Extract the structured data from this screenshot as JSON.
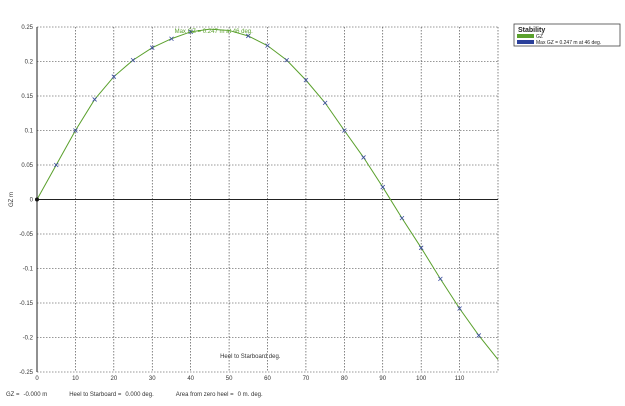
{
  "chart_data": {
    "type": "line",
    "title": "",
    "xlabel": "Heel to Starboard  deg.",
    "ylabel": "GZ  m",
    "xlim": [
      0,
      120
    ],
    "ylim": [
      -0.25,
      0.25
    ],
    "x_ticks": [
      0,
      10,
      20,
      30,
      40,
      50,
      60,
      70,
      80,
      90,
      100,
      110
    ],
    "y_ticks": [
      -0.25,
      -0.2,
      -0.15,
      -0.1,
      -0.05,
      0,
      0.05,
      0.1,
      0.15,
      0.2,
      0.25
    ],
    "x_tick_labels": [
      "0",
      "10",
      "20",
      "30",
      "40",
      "50",
      "60",
      "70",
      "80",
      "90",
      "100",
      "110"
    ],
    "y_tick_labels": [
      "-0.25",
      "-0.2",
      "-0.15",
      "-0.1",
      "-0.05",
      "0",
      "0.05",
      "0.1",
      "0.15",
      "0.2",
      "0.25"
    ],
    "grid": true,
    "series": [
      {
        "name": "GZ",
        "color": "#5aa02c",
        "marker_color": "#3a4aa0",
        "x": [
          0,
          5,
          10,
          15,
          20,
          25,
          30,
          35,
          40,
          45,
          50,
          55,
          60,
          65,
          70,
          75,
          80,
          85,
          90,
          95,
          100,
          105,
          110,
          115,
          120
        ],
        "y": [
          0,
          0.05,
          0.1,
          0.145,
          0.178,
          0.202,
          0.22,
          0.233,
          0.243,
          0.247,
          0.245,
          0.237,
          0.223,
          0.202,
          0.173,
          0.14,
          0.1,
          0.061,
          0.018,
          -0.027,
          -0.07,
          -0.115,
          -0.158,
          -0.197,
          -0.232
        ],
        "markers_x": [
          5,
          10,
          15,
          20,
          25,
          30,
          35,
          40,
          55,
          60,
          65,
          70,
          75,
          80,
          85,
          90,
          95,
          100,
          105,
          110,
          115
        ],
        "markers_y": [
          0.05,
          0.1,
          0.145,
          0.178,
          0.202,
          0.22,
          0.233,
          0.243,
          0.237,
          0.223,
          0.202,
          0.173,
          0.14,
          0.1,
          0.061,
          0.018,
          -0.027,
          -0.07,
          -0.115,
          -0.158,
          -0.197
        ]
      }
    ],
    "annotation": {
      "text": "Max GZ = 0.247 m at 46  deg.",
      "x": 46,
      "y": 0.247
    },
    "legend": {
      "placement": "top-right",
      "title": "Stability",
      "entries": [
        {
          "label": "GZ",
          "color": "#5aa02c"
        },
        {
          "label": "Max GZ = 0.247 m at 46  deg.",
          "color": "#2a3f9a"
        }
      ]
    }
  },
  "status": {
    "gz_label": "GZ =",
    "gz_value": "-0.000 m",
    "heel_label": "Heel to Starboard =",
    "heel_value": "0.000  deg.",
    "area_label": "Area from zero heel =",
    "area_value": "0 m. deg."
  }
}
